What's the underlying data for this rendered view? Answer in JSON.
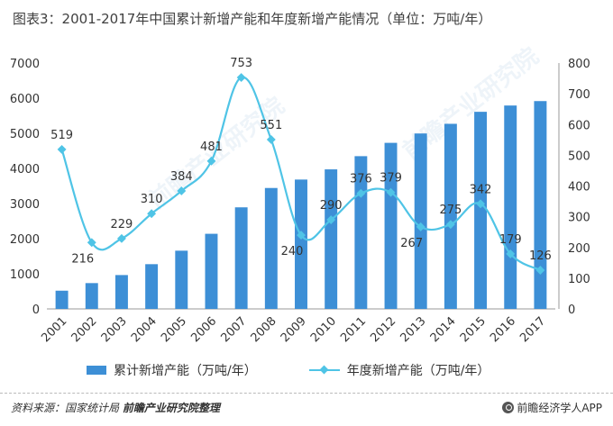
{
  "title": "图表3：2001-2017年中国累计新增产能和年度新增产能情况（单位：万吨/年）",
  "chart_data": {
    "type": "bar",
    "categories": [
      "2001",
      "2002",
      "2003",
      "2004",
      "2005",
      "2006",
      "2007",
      "2008",
      "2009",
      "2010",
      "2011",
      "2012",
      "2013",
      "2014",
      "2015",
      "2016",
      "2017"
    ],
    "series": [
      {
        "name": "累计新增产能（万吨/年）",
        "type": "bar",
        "axis": "left",
        "color": "#3d8fd6",
        "values": [
          519,
          735,
          964,
          1274,
          1658,
          2139,
          2892,
          3443,
          3683,
          3973,
          4349,
          4728,
          4995,
          5270,
          5612,
          5791,
          5917
        ]
      },
      {
        "name": "年度新增产能（万吨/年）",
        "type": "line",
        "axis": "right",
        "color": "#4fc4e6",
        "values": [
          519,
          216,
          229,
          310,
          384,
          481,
          753,
          551,
          240,
          290,
          376,
          379,
          267,
          275,
          342,
          179,
          126
        ]
      }
    ],
    "left_axis": {
      "min": 0,
      "max": 7000,
      "ticks": [
        0,
        1000,
        2000,
        3000,
        4000,
        5000,
        6000,
        7000
      ]
    },
    "right_axis": {
      "min": 0,
      "max": 800,
      "ticks": [
        0,
        100,
        200,
        300,
        400,
        500,
        600,
        700,
        800
      ]
    },
    "grid": false,
    "legend_position": "bottom"
  },
  "watermark": "前瞻产业研究院",
  "footer": {
    "source_label": "资料来源：",
    "source_text": "国家统计局",
    "source_org": "前瞻产业研究院整理",
    "brand": "前瞻经济学人APP"
  }
}
